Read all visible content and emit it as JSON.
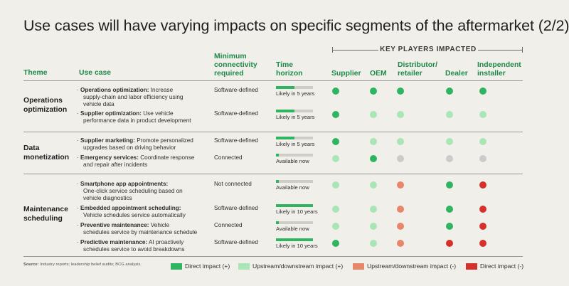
{
  "title": "Use cases will have varying impacts on specific segments of the aftermarket (2/2)",
  "key_players_label": "KEY PLAYERS IMPACTED",
  "headers": {
    "theme": "Theme",
    "use_case": "Use case",
    "conn_line1": "Minimum",
    "conn_line2": "connectivity",
    "conn_line3": "required",
    "time_line1": "Time",
    "time_line2": "horizon",
    "supplier": "Supplier",
    "oem": "OEM",
    "distributor_line1": "Distributor/",
    "distributor_line2": "retailer",
    "dealer": "Dealer",
    "independent_line1": "Independent",
    "independent_line2": "installer"
  },
  "colors": {
    "direct_pos": "#2fb561",
    "updown_pos": "#a9e6b5",
    "neutral": "#cbcbcb",
    "updown_neg": "#e8866a",
    "direct_neg": "#d6302b"
  },
  "themes": [
    {
      "line1": "Operations",
      "line2": "optimization"
    },
    {
      "line1": "Data",
      "line2": "monetization"
    },
    {
      "line1": "Maintenance",
      "line2": "scheduling"
    }
  ],
  "rows": [
    {
      "uc_bold": "Operations optimization:",
      "uc_rest": "Increase",
      "uc_lines": [
        "supply-chain and labor efficiency using",
        "vehicle data"
      ],
      "connectivity": "Software-defined",
      "time_label": "Likely in 5 years",
      "time_fill": 0.5,
      "impacts": [
        "direct_pos",
        "direct_pos",
        "direct_pos",
        "direct_pos",
        "direct_pos"
      ]
    },
    {
      "uc_bold": "Supplier optimization:",
      "uc_rest": "Use vehicle",
      "uc_lines": [
        "performance data in product development"
      ],
      "connectivity": "Software-defined",
      "time_label": "Likely in 5 years",
      "time_fill": 0.5,
      "impacts": [
        "direct_pos",
        "updown_pos",
        "updown_pos",
        "updown_pos",
        "updown_pos"
      ]
    },
    {
      "uc_bold": "Supplier marketing:",
      "uc_rest": "Promote personalized",
      "uc_lines": [
        "upgrades based on driving behavior"
      ],
      "connectivity": "Software-defined",
      "time_label": "Likely in 5 years",
      "time_fill": 0.5,
      "impacts": [
        "direct_pos",
        "updown_pos",
        "updown_pos",
        "updown_pos",
        "updown_pos"
      ]
    },
    {
      "uc_bold": "Emergency services:",
      "uc_rest": "Coordinate response",
      "uc_lines": [
        "and repair after incidents"
      ],
      "connectivity": "Connected",
      "time_label": "Available now",
      "time_fill": 0.08,
      "impacts": [
        "updown_pos",
        "direct_pos",
        "neutral",
        "neutral",
        "neutral"
      ]
    },
    {
      "uc_bold": "Smartphone app appointments:",
      "uc_rest": "",
      "uc_lines": [
        "One-click service scheduling based on",
        "vehicle diagnostics"
      ],
      "connectivity": "Not connected",
      "time_label": "Available now",
      "time_fill": 0.08,
      "impacts": [
        "updown_pos",
        "updown_pos",
        "updown_neg",
        "direct_pos",
        "direct_neg"
      ]
    },
    {
      "uc_bold": "Embedded appointment scheduling:",
      "uc_rest": "",
      "uc_lines": [
        "Vehicle schedules service automatically"
      ],
      "connectivity": "Software-defined",
      "time_label": "Likely in 10 years",
      "time_fill": 1.0,
      "impacts": [
        "updown_pos",
        "updown_pos",
        "updown_neg",
        "direct_pos",
        "direct_neg"
      ]
    },
    {
      "uc_bold": "Preventive maintenance:",
      "uc_rest": "Vehicle",
      "uc_lines": [
        "schedules service by maintenance schedule"
      ],
      "connectivity": "Connected",
      "time_label": "Available now",
      "time_fill": 0.08,
      "impacts": [
        "updown_pos",
        "updown_pos",
        "updown_neg",
        "direct_pos",
        "direct_neg"
      ]
    },
    {
      "uc_bold": "Predictive maintenance:",
      "uc_rest": "AI proactively",
      "uc_lines": [
        "schedules service to avoid breakdowns"
      ],
      "connectivity": "Software-defined",
      "time_label": "Likely in 10 years",
      "time_fill": 1.0,
      "impacts": [
        "direct_pos",
        "updown_pos",
        "updown_neg",
        "direct_neg",
        "direct_neg"
      ]
    }
  ],
  "source_label": "Source:",
  "source_text": "Industry reports; leadership belief audits; BCG analysis.",
  "legend": [
    {
      "key": "direct_pos",
      "label": "Direct impact (+)"
    },
    {
      "key": "updown_pos",
      "label": "Upstream/downstream impact (+)"
    },
    {
      "key": "updown_neg",
      "label": "Upstream/downstream impact (-)"
    },
    {
      "key": "direct_neg",
      "label": "Direct impact (-)"
    }
  ]
}
